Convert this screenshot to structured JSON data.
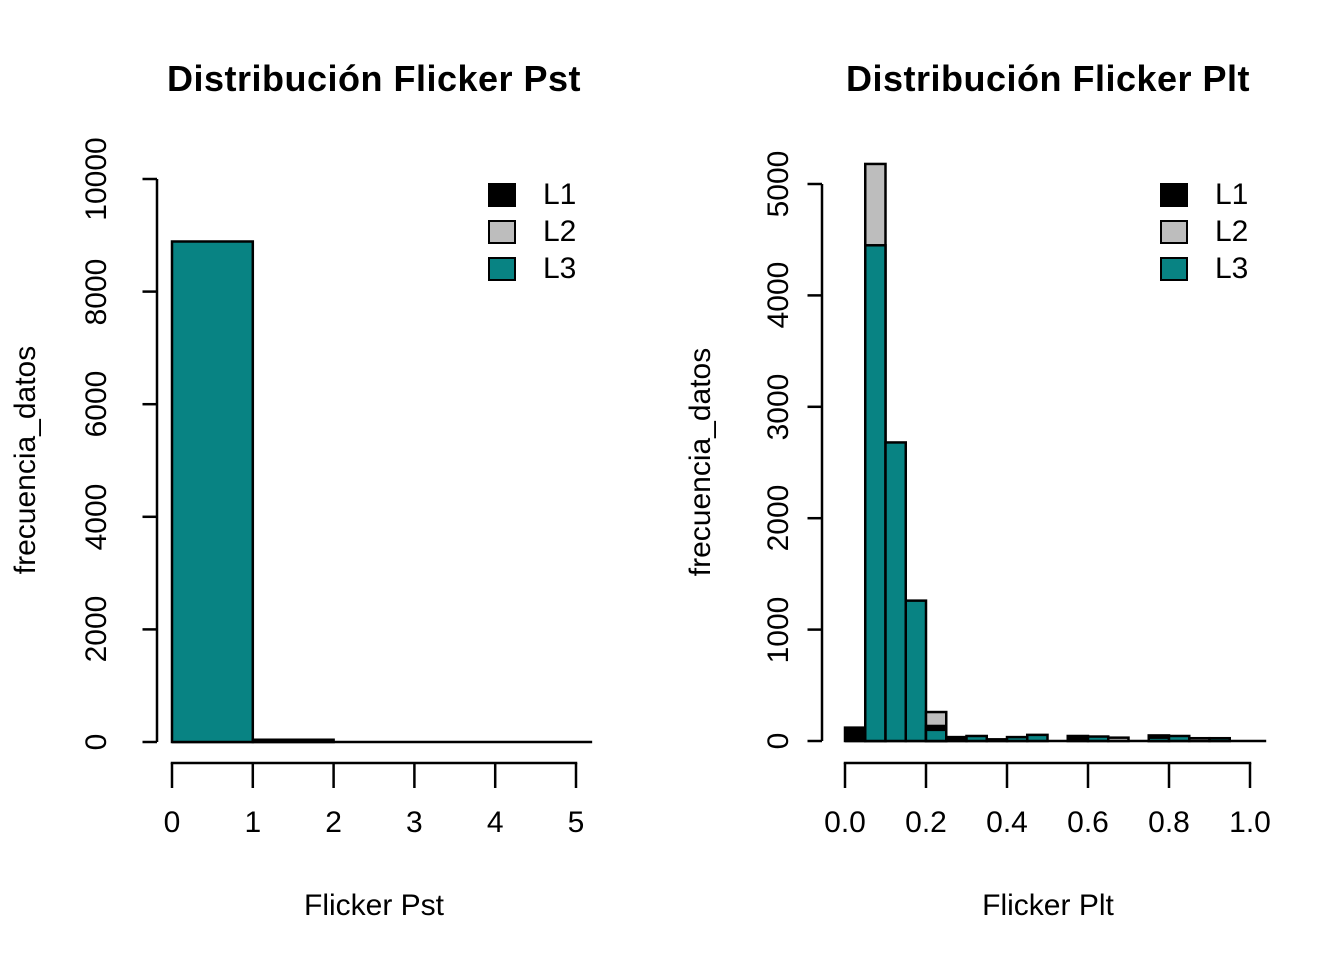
{
  "page": {
    "background": "#ffffff"
  },
  "series_colors": {
    "L1": "#000000",
    "L2": "#BDBDBD",
    "L3": "#088383"
  },
  "legend": {
    "entries": [
      {
        "label": "L1",
        "series": "L1",
        "color": "#000000"
      },
      {
        "label": "L2",
        "series": "L2",
        "color": "#BDBDBD"
      },
      {
        "label": "L3",
        "series": "L3",
        "color": "#088383"
      }
    ]
  },
  "chart_data": [
    {
      "type": "bar",
      "subtype": "overlaid-histogram",
      "title": "Distribución Flicker Pst",
      "xlabel": "Flicker Pst",
      "ylabel": "frecuencia_datos",
      "xlim": [
        0,
        5
      ],
      "ylim": [
        0,
        10000
      ],
      "grid": false,
      "legend_position": "top-right",
      "x_tick_labels": [
        "0",
        "1",
        "2",
        "3",
        "4",
        "5"
      ],
      "x_tick_values": [
        0,
        1,
        2,
        3,
        4,
        5
      ],
      "y_tick_labels": [
        "0",
        "2000",
        "4000",
        "6000",
        "8000",
        "10000"
      ],
      "y_tick_values": [
        0,
        2000,
        4000,
        6000,
        8000,
        10000
      ],
      "bin_width": 1,
      "baseline_extent": [
        0,
        5.2
      ],
      "bars": [
        {
          "x0": 0,
          "x1": 1,
          "segments": [
            {
              "series": "L3",
              "value": 8890
            }
          ]
        },
        {
          "x0": 1,
          "x1": 2,
          "segments": [
            {
              "series": "L1",
              "value": 40
            }
          ]
        }
      ]
    },
    {
      "type": "bar",
      "subtype": "overlaid-histogram",
      "title": "Distribución Flicker Plt",
      "xlabel": "Flicker Plt",
      "ylabel": "frecuencia_datos",
      "xlim": [
        0,
        1
      ],
      "ylim": [
        0,
        5000
      ],
      "grid": false,
      "legend_position": "top-right",
      "x_tick_labels": [
        "0.0",
        "0.2",
        "0.4",
        "0.6",
        "0.8",
        "1.0"
      ],
      "x_tick_values": [
        0,
        0.2,
        0.4,
        0.6,
        0.8,
        1.0
      ],
      "y_tick_labels": [
        "0",
        "1000",
        "2000",
        "3000",
        "4000",
        "5000"
      ],
      "y_tick_values": [
        0,
        1000,
        2000,
        3000,
        4000,
        5000
      ],
      "bin_width": 0.05,
      "baseline_extent": [
        0,
        1.04
      ],
      "bars": [
        {
          "x0": 0.0,
          "x1": 0.05,
          "segments": [
            {
              "series": "L1",
              "value": 120
            }
          ]
        },
        {
          "x0": 0.05,
          "x1": 0.1,
          "segments": [
            {
              "series": "L2",
              "value": 5180
            },
            {
              "series": "L3",
              "value": 4450
            }
          ]
        },
        {
          "x0": 0.1,
          "x1": 0.15,
          "segments": [
            {
              "series": "L3",
              "value": 2680
            }
          ]
        },
        {
          "x0": 0.15,
          "x1": 0.2,
          "segments": [
            {
              "series": "L3",
              "value": 1260
            }
          ]
        },
        {
          "x0": 0.2,
          "x1": 0.25,
          "segments": [
            {
              "series": "L2",
              "value": 260
            },
            {
              "series": "L1",
              "value": 135
            },
            {
              "series": "L3",
              "value": 100
            }
          ]
        },
        {
          "x0": 0.25,
          "x1": 0.3,
          "segments": [
            {
              "series": "L1",
              "value": 35
            }
          ]
        },
        {
          "x0": 0.3,
          "x1": 0.35,
          "segments": [
            {
              "series": "L3",
              "value": 45
            }
          ]
        },
        {
          "x0": 0.35,
          "x1": 0.4,
          "segments": [
            {
              "series": "L2",
              "value": 15
            }
          ]
        },
        {
          "x0": 0.4,
          "x1": 0.45,
          "segments": [
            {
              "series": "L3",
              "value": 35
            }
          ]
        },
        {
          "x0": 0.45,
          "x1": 0.5,
          "segments": [
            {
              "series": "L3",
              "value": 55
            }
          ]
        },
        {
          "x0": 0.55,
          "x1": 0.6,
          "segments": [
            {
              "series": "L1",
              "value": 45
            }
          ]
        },
        {
          "x0": 0.6,
          "x1": 0.65,
          "segments": [
            {
              "series": "L3",
              "value": 40
            }
          ]
        },
        {
          "x0": 0.65,
          "x1": 0.7,
          "segments": [
            {
              "series": "L2",
              "value": 30
            }
          ]
        },
        {
          "x0": 0.75,
          "x1": 0.8,
          "segments": [
            {
              "series": "L1",
              "value": 50
            },
            {
              "series": "L3",
              "value": 30
            }
          ]
        },
        {
          "x0": 0.8,
          "x1": 0.85,
          "segments": [
            {
              "series": "L3",
              "value": 45
            }
          ]
        },
        {
          "x0": 0.85,
          "x1": 0.9,
          "segments": [
            {
              "series": "L2",
              "value": 25
            }
          ]
        },
        {
          "x0": 0.9,
          "x1": 0.95,
          "segments": [
            {
              "series": "L3",
              "value": 25
            }
          ]
        }
      ]
    }
  ]
}
